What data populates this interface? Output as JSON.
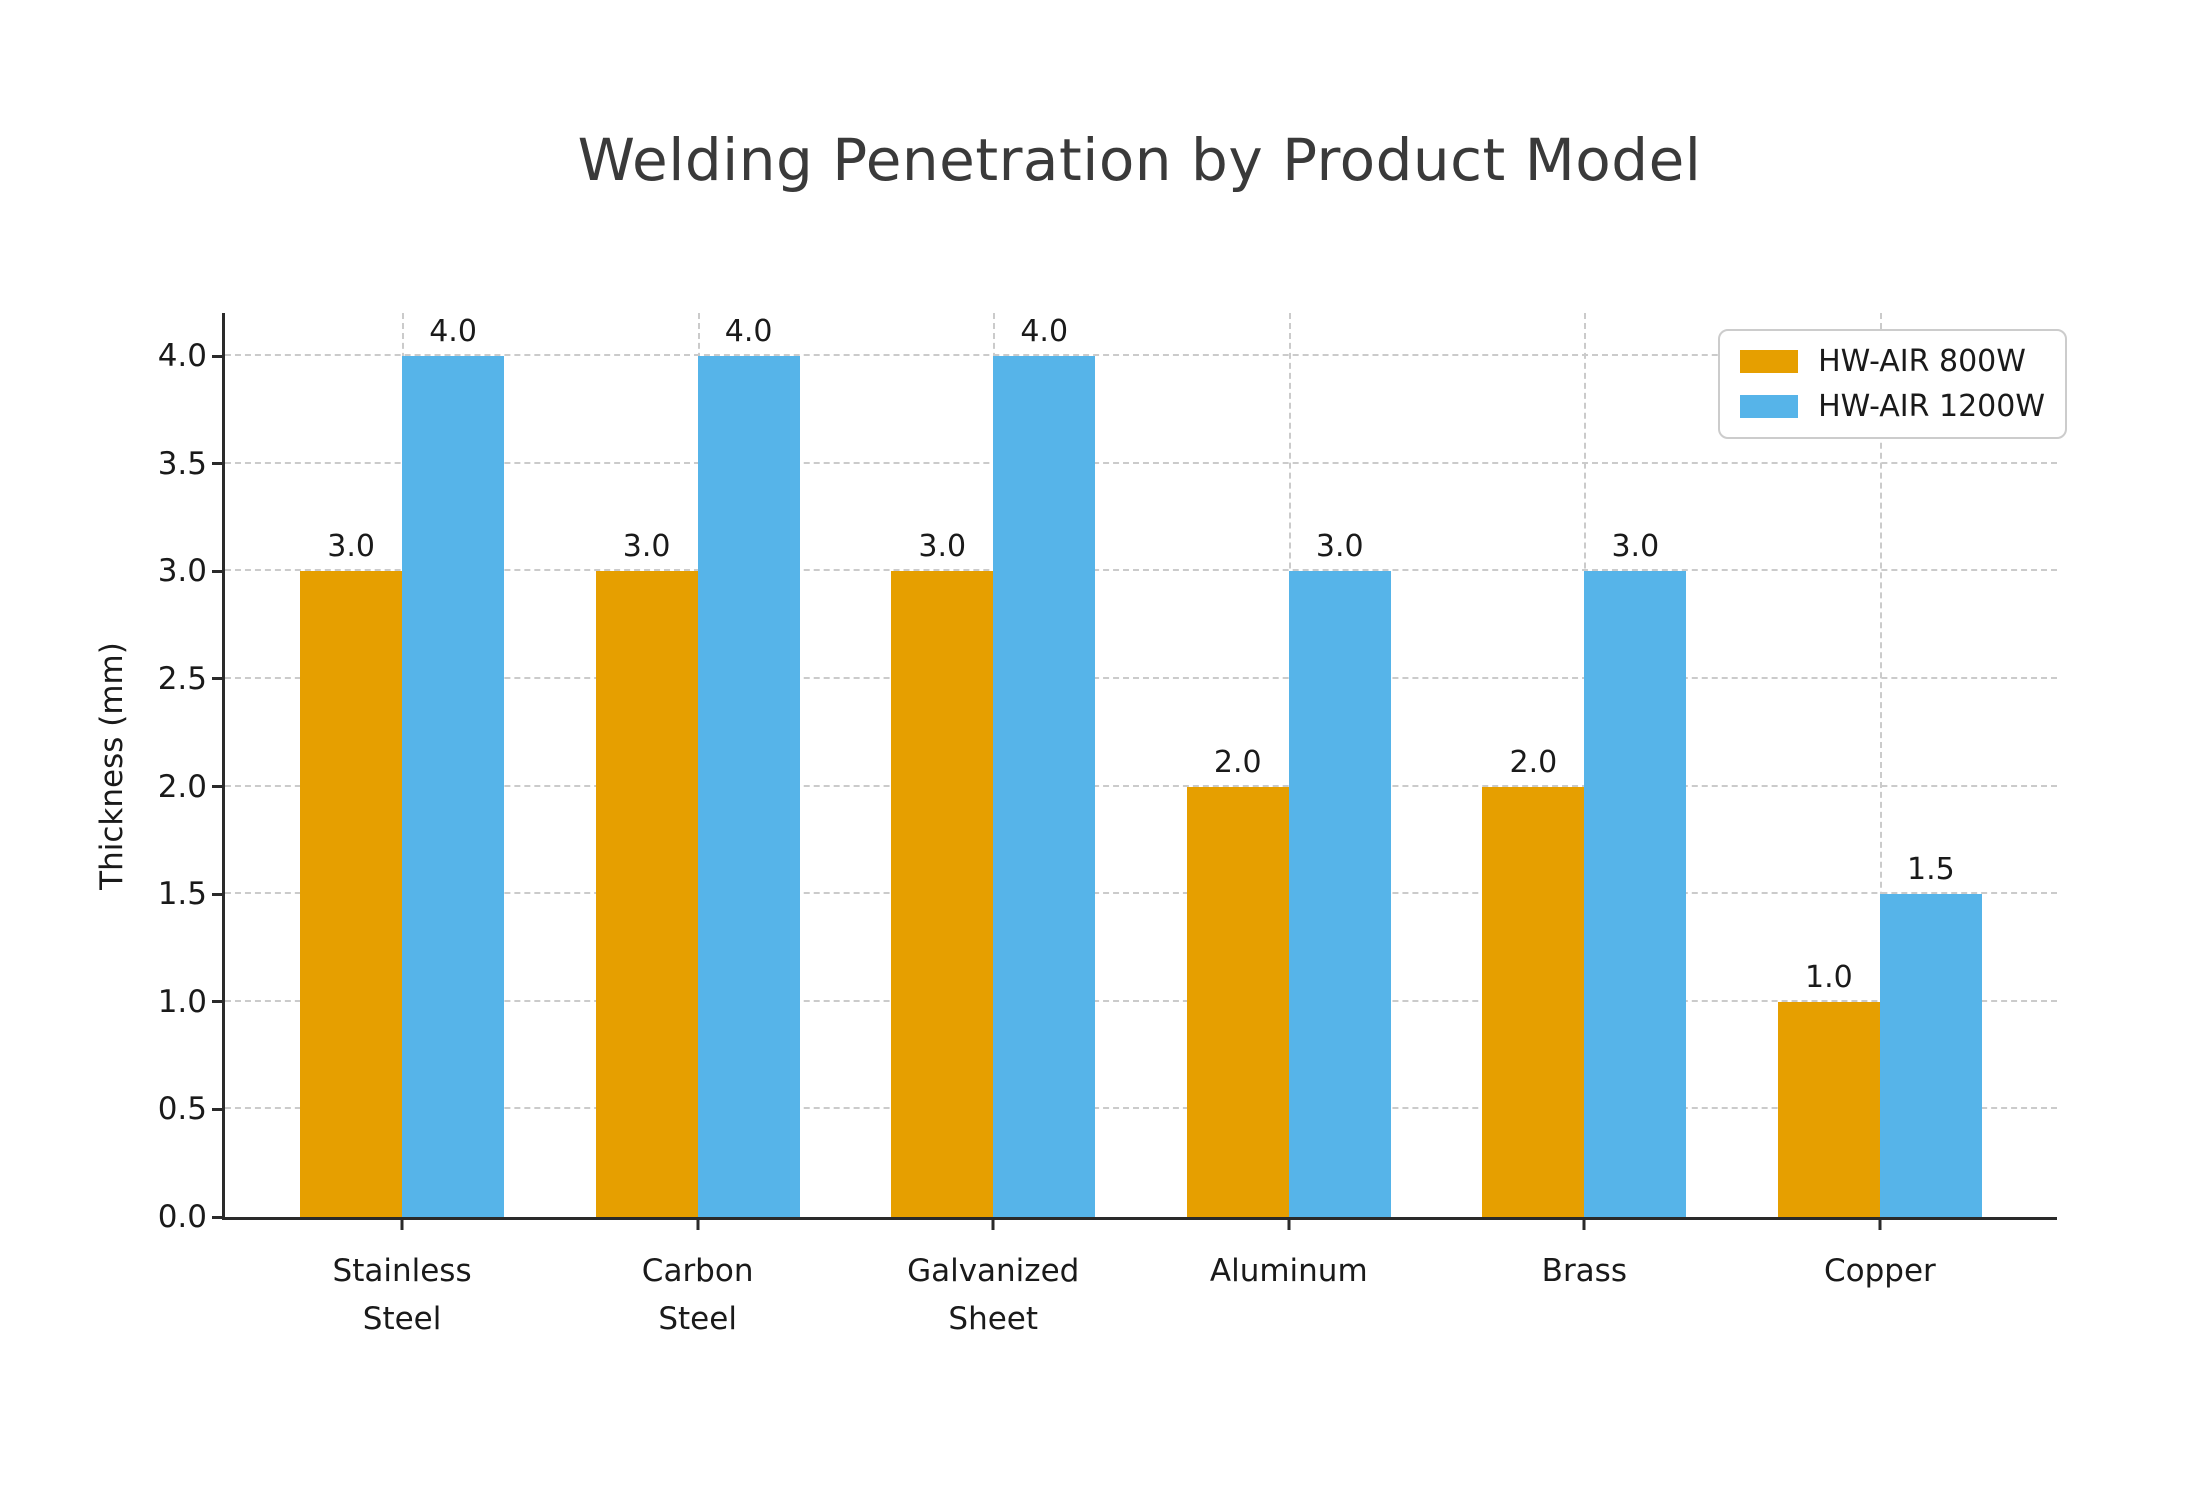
{
  "title": "Welding Penetration by Product Model",
  "colors": {
    "series_800w": "#E69F00",
    "series_1200w": "#56B4E9",
    "grid": "#cbcbcb",
    "axis": "#2a2a2a",
    "tick_text": "#1a1a1a",
    "title_text": "#3a3a3a",
    "legend_border": "#cccccc"
  },
  "chart_data": {
    "type": "bar",
    "title": "Welding Penetration by Product Model",
    "xlabel": "",
    "ylabel": "Thickness (mm)",
    "categories": [
      "Stainless\nSteel",
      "Carbon\nSteel",
      "Galvanized\nSheet",
      "Aluminum",
      "Brass",
      "Copper"
    ],
    "series": [
      {
        "name": "HW-AIR 800W",
        "color": "#E69F00",
        "values": [
          3.0,
          3.0,
          3.0,
          2.0,
          2.0,
          1.0
        ]
      },
      {
        "name": "HW-AIR 1200W",
        "color": "#56B4E9",
        "values": [
          4.0,
          4.0,
          4.0,
          3.0,
          3.0,
          1.5
        ]
      }
    ],
    "bar_value_labels": [
      [
        "3.0",
        "3.0",
        "3.0",
        "2.0",
        "2.0",
        "1.0"
      ],
      [
        "4.0",
        "4.0",
        "4.0",
        "3.0",
        "3.0",
        "1.5"
      ]
    ],
    "ylim": [
      0,
      4.2
    ],
    "yticks": [
      0.0,
      0.5,
      1.0,
      1.5,
      2.0,
      2.5,
      3.0,
      3.5,
      4.0
    ],
    "ytick_labels": [
      "0.0",
      "0.5",
      "1.0",
      "1.5",
      "2.0",
      "2.5",
      "3.0",
      "3.5",
      "4.0"
    ],
    "grid": "dashed both axes",
    "legend_position": "upper right"
  }
}
